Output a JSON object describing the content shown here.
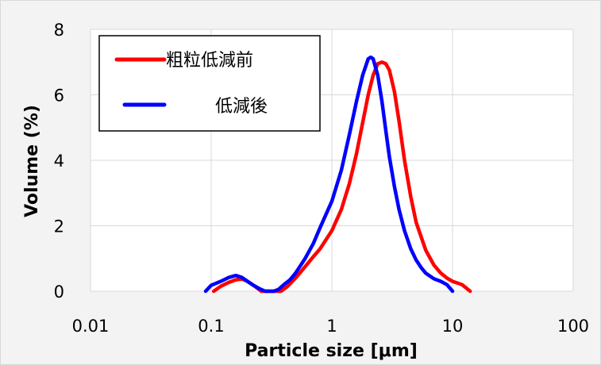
{
  "chart_data": {
    "type": "line",
    "title": "",
    "xlabel": "Particle size [μm]",
    "ylabel": "Volume (%)",
    "xscale": "log",
    "xlim": [
      0.01,
      100
    ],
    "ylim": [
      0,
      8
    ],
    "x_ticks": [
      "0.01",
      "0.1",
      "1",
      "10",
      "100"
    ],
    "y_ticks": [
      "0",
      "2",
      "4",
      "6",
      "8"
    ],
    "grid": true,
    "legend": "top-left",
    "series": [
      {
        "name": "粗粒低減前",
        "color": "#ff0000",
        "x": [
          0.105,
          0.12,
          0.14,
          0.16,
          0.18,
          0.2,
          0.23,
          0.26,
          0.3,
          0.35,
          0.38,
          0.43,
          0.5,
          0.6,
          0.7,
          0.8,
          1.0,
          1.2,
          1.4,
          1.6,
          1.8,
          2.0,
          2.2,
          2.4,
          2.6,
          2.8,
          3.0,
          3.3,
          3.6,
          4.0,
          4.5,
          5.0,
          6.0,
          7.0,
          8.0,
          9.0,
          10.0,
          11.0,
          12.0,
          14.0
        ],
        "y": [
          0.0,
          0.15,
          0.27,
          0.35,
          0.37,
          0.3,
          0.15,
          0.0,
          0.0,
          0.0,
          0.0,
          0.15,
          0.4,
          0.75,
          1.05,
          1.3,
          1.85,
          2.5,
          3.3,
          4.2,
          5.15,
          6.0,
          6.6,
          6.95,
          7.0,
          6.95,
          6.75,
          6.1,
          5.2,
          4.0,
          2.9,
          2.1,
          1.25,
          0.8,
          0.55,
          0.4,
          0.3,
          0.25,
          0.2,
          0.0
        ]
      },
      {
        "name": "低減後",
        "color": "#0000ff",
        "x": [
          0.09,
          0.1,
          0.12,
          0.14,
          0.16,
          0.18,
          0.2,
          0.22,
          0.25,
          0.28,
          0.33,
          0.36,
          0.4,
          0.45,
          0.5,
          0.6,
          0.7,
          0.8,
          1.0,
          1.2,
          1.4,
          1.6,
          1.8,
          2.0,
          2.1,
          2.2,
          2.4,
          2.6,
          2.8,
          3.0,
          3.3,
          3.6,
          4.0,
          4.5,
          5.0,
          5.5,
          6.0,
          7.0,
          8.0,
          9.0,
          10.0
        ],
        "y": [
          0.0,
          0.18,
          0.3,
          0.42,
          0.48,
          0.42,
          0.3,
          0.2,
          0.08,
          0.0,
          0.0,
          0.05,
          0.2,
          0.35,
          0.55,
          1.0,
          1.45,
          1.95,
          2.75,
          3.7,
          4.8,
          5.8,
          6.6,
          7.1,
          7.15,
          7.1,
          6.6,
          5.8,
          4.9,
          4.1,
          3.2,
          2.5,
          1.85,
          1.3,
          0.95,
          0.72,
          0.55,
          0.38,
          0.3,
          0.2,
          0.0
        ]
      }
    ]
  }
}
